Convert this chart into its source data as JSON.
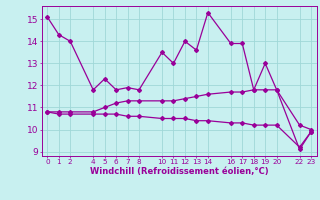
{
  "xlabel": "Windchill (Refroidissement éolien,°C)",
  "bg_color": "#c8f0f0",
  "grid_color": "#a0d8d8",
  "line_color": "#990099",
  "ylim": [
    8.8,
    15.6
  ],
  "xlim": [
    -0.5,
    23.5
  ],
  "yticks": [
    9,
    10,
    11,
    12,
    13,
    14,
    15
  ],
  "xtick_positions": [
    0,
    1,
    2,
    4,
    5,
    6,
    7,
    8,
    10,
    11,
    12,
    13,
    14,
    16,
    17,
    18,
    19,
    20,
    22,
    23
  ],
  "xtick_labels": [
    "0",
    "1",
    "2",
    "4",
    "5",
    "6",
    "7",
    "8",
    "10",
    "11",
    "12",
    "13",
    "14",
    "16",
    "17",
    "18",
    "19",
    "20",
    "22",
    "23"
  ],
  "curve1_x": [
    0,
    1,
    2,
    4,
    5,
    6,
    7,
    8,
    10,
    11,
    12,
    13,
    14,
    16,
    17,
    18,
    19,
    20,
    22,
    23
  ],
  "curve1_y": [
    15.1,
    14.3,
    14.0,
    11.8,
    12.3,
    11.8,
    11.9,
    11.8,
    13.5,
    13.0,
    14.0,
    13.6,
    15.3,
    13.9,
    13.9,
    11.8,
    13.0,
    11.8,
    9.1,
    9.9
  ],
  "curve2_x": [
    0,
    1,
    2,
    4,
    5,
    6,
    7,
    8,
    10,
    11,
    12,
    13,
    14,
    16,
    17,
    18,
    19,
    20,
    22,
    23
  ],
  "curve2_y": [
    10.8,
    10.8,
    10.8,
    10.8,
    11.0,
    11.2,
    11.3,
    11.3,
    11.3,
    11.3,
    11.4,
    11.5,
    11.6,
    11.7,
    11.7,
    11.8,
    11.8,
    11.8,
    10.2,
    10.0
  ],
  "curve3_x": [
    0,
    1,
    2,
    4,
    5,
    6,
    7,
    8,
    10,
    11,
    12,
    13,
    14,
    16,
    17,
    18,
    19,
    20,
    22,
    23
  ],
  "curve3_y": [
    10.8,
    10.7,
    10.7,
    10.7,
    10.7,
    10.7,
    10.6,
    10.6,
    10.5,
    10.5,
    10.5,
    10.4,
    10.4,
    10.3,
    10.3,
    10.2,
    10.2,
    10.2,
    9.2,
    9.9
  ],
  "ylabel_fontsize": 5.5,
  "xlabel_fontsize": 6.0,
  "ytick_fontsize": 6.5,
  "xtick_fontsize": 5.2,
  "linewidth": 0.9,
  "markersize": 2.0
}
